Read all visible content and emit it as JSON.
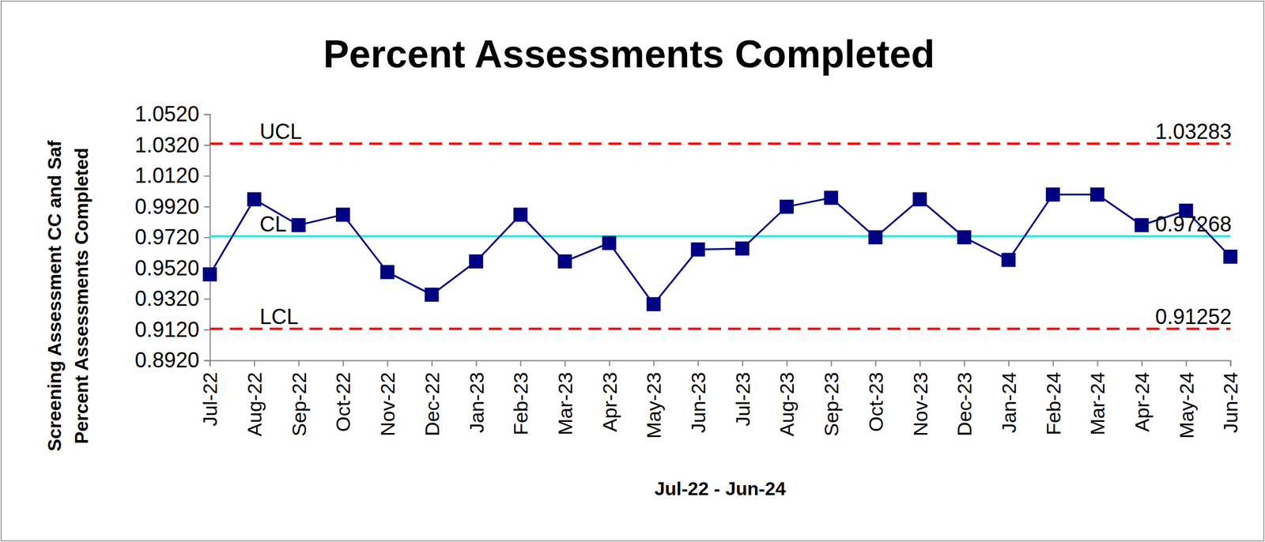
{
  "chart_data": {
    "type": "line",
    "title": "Percent Assessments Completed",
    "x_label": "Jul-22 - Jun-24",
    "y_label": [
      "Screening Assessment CC and Saf",
      "Percent Assessments Completed"
    ],
    "categories": [
      "Jul-22",
      "Aug-22",
      "Sep-22",
      "Oct-22",
      "Nov-22",
      "Dec-22",
      "Jan-23",
      "Feb-23",
      "Mar-23",
      "Apr-23",
      "May-23",
      "Jun-23",
      "Jul-23",
      "Aug-23",
      "Sep-23",
      "Oct-23",
      "Nov-23",
      "Dec-23",
      "Jan-24",
      "Feb-24",
      "Mar-24",
      "Apr-24",
      "May-24",
      "Jun-24"
    ],
    "values": [
      0.9479,
      0.9967,
      0.9799,
      0.9867,
      0.9494,
      0.9347,
      0.9563,
      0.9867,
      0.9563,
      0.9683,
      0.9285,
      0.9641,
      0.9647,
      0.9919,
      0.9977,
      0.972,
      0.9967,
      0.972,
      0.9573,
      0.9998,
      0.9998,
      0.9799,
      0.9893,
      0.9594
    ],
    "color": "#000080",
    "marker": "square",
    "reference_lines": [
      {
        "label": "UCL",
        "value": 1.03283,
        "color": "#ff0000",
        "line_style": "dashed"
      },
      {
        "label": "CL",
        "value": 0.97268,
        "color": "#33e6e6",
        "line_style": "solid"
      },
      {
        "label": "LCL",
        "value": 0.91252,
        "color": "#ff0000",
        "line_style": "dashed"
      }
    ],
    "ylim": [
      0.892,
      1.052
    ],
    "yticks": [
      {
        "value": 0.892,
        "label": "0.8920"
      },
      {
        "value": 0.912,
        "label": "0.9120"
      },
      {
        "value": 0.932,
        "label": "0.9320"
      },
      {
        "value": 0.952,
        "label": "0.9520"
      },
      {
        "value": 0.972,
        "label": "0.9720"
      },
      {
        "value": 0.992,
        "label": "0.9920"
      },
      {
        "value": 1.012,
        "label": "1.0120"
      },
      {
        "value": 1.032,
        "label": "1.0320"
      },
      {
        "value": 1.052,
        "label": "1.0520"
      }
    ],
    "grid": false
  }
}
